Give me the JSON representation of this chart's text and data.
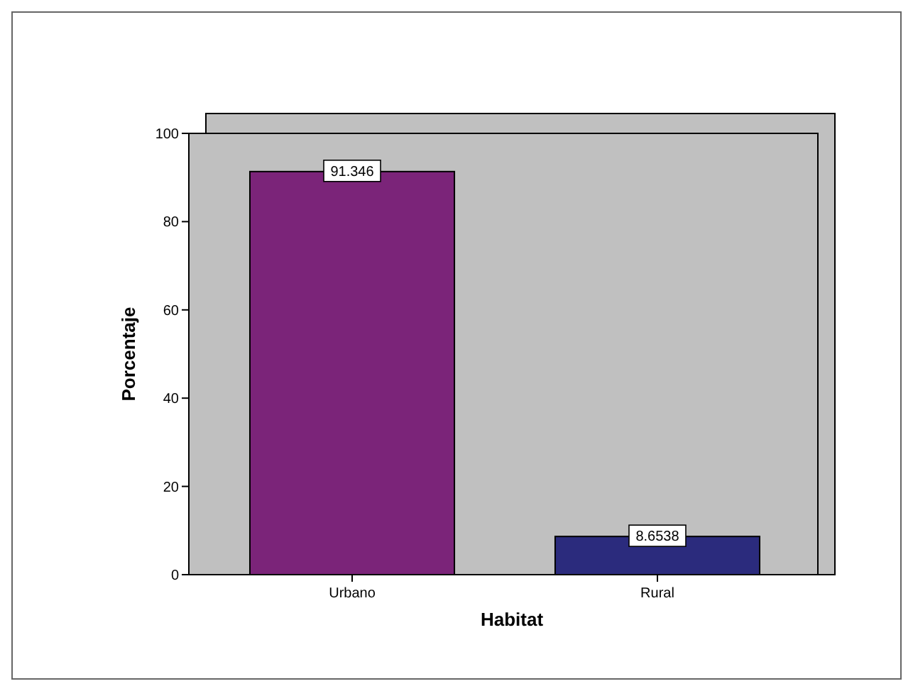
{
  "chart_data": {
    "type": "bar",
    "xlabel": "Habitat",
    "ylabel": "Porcentaje",
    "categories": [
      "Urbano",
      "Rural"
    ],
    "values": [
      91.346,
      8.6538
    ],
    "colors": [
      "#7b2479",
      "#2b2b7d"
    ],
    "ylim": [
      0,
      100
    ],
    "yticks": [
      0,
      20,
      40,
      60,
      80,
      100
    ],
    "data_labels": true
  }
}
